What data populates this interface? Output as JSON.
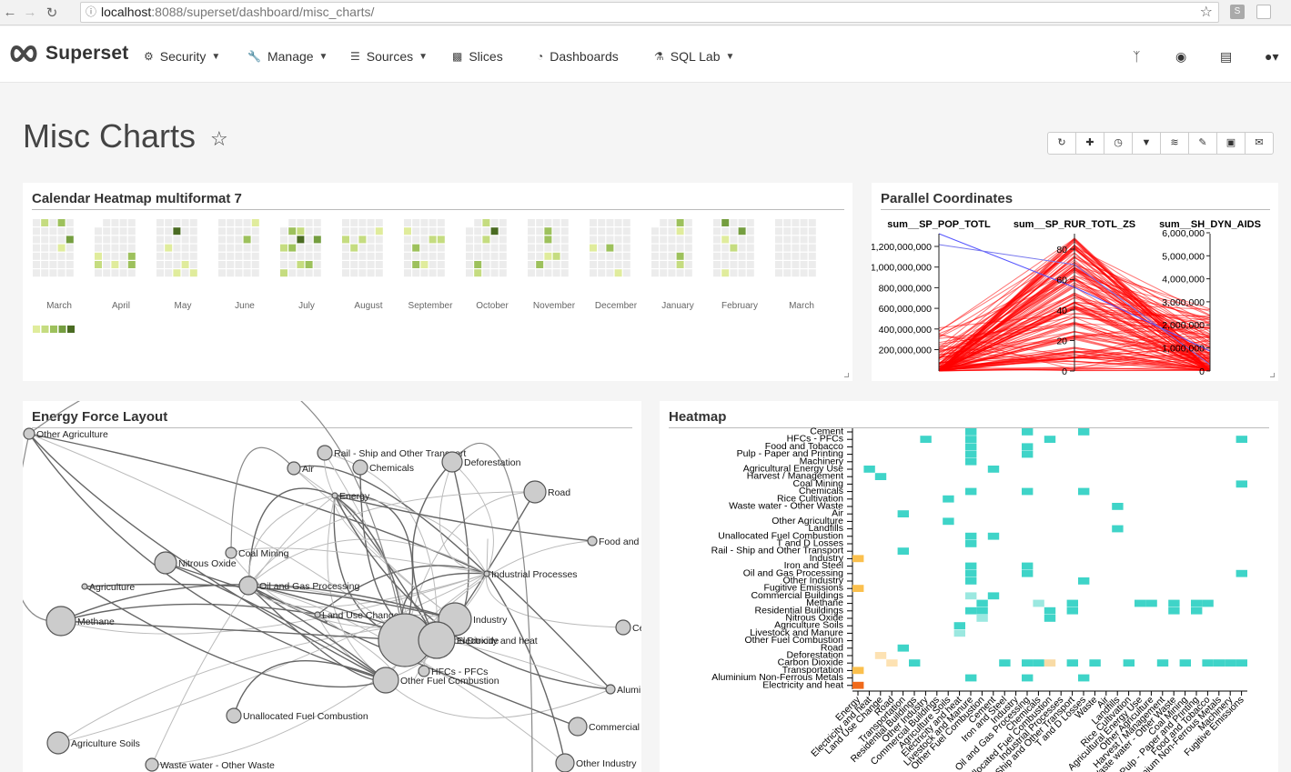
{
  "browser": {
    "url_host": "localhost",
    "url_rest": ":8088/superset/dashboard/misc_charts/",
    "ext1": "S"
  },
  "navbar": {
    "brand": "Superset",
    "items": [
      {
        "label": "Security",
        "icon": "gears-icon",
        "dropdown": true
      },
      {
        "label": "Manage",
        "icon": "wrench-icon",
        "dropdown": true
      },
      {
        "label": "Sources",
        "icon": "database-icon",
        "dropdown": true
      },
      {
        "label": "Slices",
        "icon": "bar-chart-icon",
        "dropdown": false
      },
      {
        "label": "Dashboards",
        "icon": "dashboard-icon",
        "dropdown": false
      },
      {
        "label": "SQL Lab",
        "icon": "flask-icon",
        "dropdown": true
      }
    ],
    "right_icons": [
      "code-fork-icon",
      "github-icon",
      "book-icon",
      "user-icon"
    ]
  },
  "dashboard": {
    "title": "Misc Charts",
    "toolbar": [
      "refresh-icon",
      "plus-icon",
      "history-icon",
      "filter-icon",
      "css-icon",
      "edit-icon",
      "save-icon",
      "email-icon"
    ]
  },
  "calendar": {
    "title": "Calendar Heatmap multiformat 7",
    "months": [
      "March",
      "April",
      "May",
      "June",
      "July",
      "August",
      "September",
      "October",
      "November",
      "December",
      "January",
      "February",
      "March"
    ],
    "legend_colors": [
      "#e0ec9c",
      "#c5dc80",
      "#9dc15c",
      "#759e40",
      "#4a6b22"
    ]
  },
  "parallel": {
    "title": "Parallel Coordinates",
    "axes": [
      "sum__SP_POP_TOTL",
      "sum__SP_RUR_TOTL_ZS",
      "sum__SH_DYN_AIDS"
    ],
    "axis1_ticks": [
      "1,200,000,000",
      "1,000,000,000",
      "800,000,000",
      "600,000,000",
      "400,000,000",
      "200,000,000"
    ],
    "axis2_ticks": [
      "80",
      "60",
      "40",
      "20",
      "0"
    ],
    "axis3_ticks": [
      "6,000,000",
      "5,000,000",
      "4,000,000",
      "3,000,000",
      "2,000,000",
      "1,000,000",
      "0"
    ]
  },
  "force": {
    "title": "Energy Force Layout",
    "nodes": [
      "Other Agriculture",
      "Rail - Ship and Other Transport",
      "Air",
      "Chemicals",
      "Deforestation",
      "Road",
      "Energy",
      "Coal Mining",
      "Nitrous Oxide",
      "Food and",
      "Agriculture",
      "Oil and Gas Processing",
      "Industrial Processes",
      "Methane",
      "Land Use Change",
      "Industry",
      "Carbon Dioxide",
      "Electricity and heat",
      "HFCs - PFCs",
      "Ce",
      "Other Fuel Combustion",
      "Alumini",
      "Unallocated Fuel Combustion",
      "Commercial",
      "Agriculture Soils",
      "Waste water - Other Waste",
      "Other Industry"
    ]
  },
  "heatmap": {
    "title": "Heatmap",
    "y_labels": [
      "Cement",
      "HFCs - PFCs",
      "Food and Tobacco",
      "Pulp - Paper and Printing",
      "Machinery",
      "Agricultural Energy Use",
      "Harvest / Management",
      "Coal Mining",
      "Chemicals",
      "Rice Cultivation",
      "Waste water - Other Waste",
      "Air",
      "Other Agriculture",
      "Landfills",
      "Unallocated Fuel Combustion",
      "T and D Losses",
      "Rail - Ship and Other Transport",
      "Industry",
      "Iron and Steel",
      "Oil and Gas Processing",
      "Other Industry",
      "Fugitive Emissions",
      "Commercial Buildings",
      "Methane",
      "Residential Buildings",
      "Nitrous Oxide",
      "Agriculture Soils",
      "Livestock and Manure",
      "Other Fuel Combustion",
      "Road",
      "Deforestation",
      "Carbon Dioxide",
      "Transportation",
      "Aluminium Non-Ferrous Metals",
      "Electricity and heat"
    ],
    "x_labels": [
      "Energy",
      "Electricity and heat",
      "Land Use Change",
      "Road",
      "Transportation",
      "Residential Buildings",
      "Other Industry",
      "Commercial Buildings",
      "Agriculture Soils",
      "Electricity and heat",
      "Livestock and Manure",
      "Other Fuel Combustion",
      "Cement",
      "Iron and Steel",
      "Industry",
      "Oil and Gas Processing",
      "Chemicals",
      "Unallocated Fuel Combustion",
      "Industrial Processes",
      "Rail - Ship and Other Transport",
      "T and D Losses",
      "Waste",
      "Air",
      "Landfills",
      "Rice Cultivation",
      "Agricultural Energy Use",
      "Other Agriculture",
      "Harvest / Management",
      "Waste water - Other Waste",
      "Coal Mining",
      "Pulp - Paper and Printing",
      "Food and Tobacco",
      "Aluminium Non-Ferrous Metals",
      "Machinery",
      "Fugitive Emissions"
    ]
  }
}
